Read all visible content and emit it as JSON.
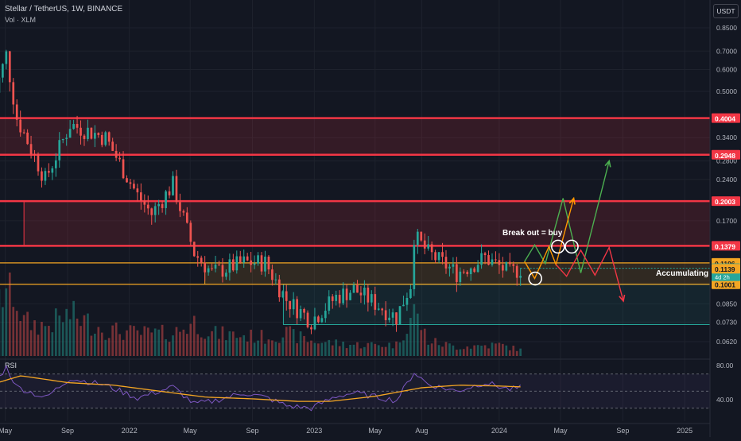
{
  "header": {
    "title": "Stellar / TetherUS, 1W, BINANCE",
    "volume_label": "Vol · XLM",
    "currency": "USDT"
  },
  "colors": {
    "up": "#26a69a",
    "down": "#ef5350",
    "resistance_line": "#f23645",
    "support_line": "#f5a623",
    "rsi_line": "#7e57c2",
    "rsi_ma": "#f5a623",
    "green_path": "#4caf50",
    "orange_path": "#ff9800",
    "red_path": "#f23645"
  },
  "chart_data": [
    {
      "type": "candlestick",
      "title": "Stellar / TetherUS, 1W, BINANCE",
      "y_scale": "log",
      "ylim": [
        0.055,
        1.0
      ],
      "x_range": [
        "2021-04-05",
        "2025-02-20"
      ],
      "y_tick_labels": [
        "0.8500",
        "0.7000",
        "0.6000",
        "0.5000",
        "0.3400",
        "0.2800",
        "0.2400",
        "0.1700",
        "0.0850",
        "0.0730",
        "0.0620"
      ],
      "x_tick_labels": [
        "May",
        "Sep",
        "2022",
        "May",
        "Sep",
        "2023",
        "May",
        "Aug",
        "2024",
        "May",
        "Sep",
        "2025"
      ],
      "ohlc_anchors": [
        {
          "date": "2021-04-05",
          "close": 0.45
        },
        {
          "date": "2021-05-03",
          "close": 0.68
        },
        {
          "date": "2021-05-24",
          "close": 0.4
        },
        {
          "date": "2021-07-19",
          "close": 0.24
        },
        {
          "date": "2021-09-06",
          "close": 0.38
        },
        {
          "date": "2021-10-11",
          "close": 0.36
        },
        {
          "date": "2021-11-15",
          "close": 0.34
        },
        {
          "date": "2022-01-17",
          "close": 0.21
        },
        {
          "date": "2022-02-14",
          "close": 0.18
        },
        {
          "date": "2022-03-28",
          "close": 0.23
        },
        {
          "date": "2022-05-09",
          "close": 0.13
        },
        {
          "date": "2022-06-13",
          "close": 0.11
        },
        {
          "date": "2022-08-15",
          "close": 0.12
        },
        {
          "date": "2022-09-26",
          "close": 0.12
        },
        {
          "date": "2022-11-07",
          "close": 0.088
        },
        {
          "date": "2022-12-26",
          "close": 0.074
        },
        {
          "date": "2023-02-13",
          "close": 0.09
        },
        {
          "date": "2023-03-20",
          "close": 0.096
        },
        {
          "date": "2023-06-12",
          "close": 0.076
        },
        {
          "date": "2023-07-10",
          "close": 0.1
        },
        {
          "date": "2023-07-17",
          "close": 0.15
        },
        {
          "date": "2023-08-14",
          "close": 0.13
        },
        {
          "date": "2023-10-09",
          "close": 0.11
        },
        {
          "date": "2023-12-04",
          "close": 0.125
        },
        {
          "date": "2024-01-22",
          "close": 0.11
        },
        {
          "date": "2024-02-12",
          "close": 0.1144
        }
      ],
      "horizontal_levels": [
        {
          "label": "0.4004",
          "value": 0.4004,
          "kind": "resistance"
        },
        {
          "label": "0.2948",
          "value": 0.2948,
          "kind": "resistance"
        },
        {
          "label": "0.2003",
          "value": 0.2003,
          "kind": "resistance"
        },
        {
          "label": "0.1379",
          "value": 0.1379,
          "kind": "resistance"
        },
        {
          "label": "0.1196",
          "value": 0.1196,
          "kind": "support"
        },
        {
          "label": "0.1001",
          "value": 0.1001,
          "kind": "support"
        }
      ],
      "price_tags": [
        {
          "label": "0.1144",
          "value": 0.1144,
          "note": "4d 2h",
          "kind": "last"
        },
        {
          "label": "0.1139",
          "value": 0.1139,
          "kind": "ma"
        }
      ],
      "zones": [
        {
          "kind": "red",
          "from_date": "2021-04-05",
          "to_date": "2025-02-20",
          "low": 0.2948,
          "high": 0.4004
        },
        {
          "kind": "red",
          "from_date": "2021-06-07",
          "to_date": "2025-02-20",
          "low": 0.1379,
          "high": 0.2003
        },
        {
          "kind": "yellow",
          "from_date": "2022-05-30",
          "to_date": "2025-02-20",
          "low": 0.1001,
          "high": 0.1196
        },
        {
          "kind": "green",
          "from_date": "2022-11-01",
          "to_date": "2025-02-20",
          "low": 0.0715,
          "high": 0.1001
        }
      ],
      "annotations": [
        "Break out = buy",
        "Accumulating"
      ],
      "scenario_paths": [
        {
          "kind": "green",
          "points": [
            [
              "2024-02-20",
              0.121
            ],
            [
              "2024-03-11",
              0.139
            ],
            [
              "2024-04-01",
              0.119
            ],
            [
              "2024-05-06",
              0.205
            ],
            [
              "2024-06-10",
              0.11
            ],
            [
              "2024-08-05",
              0.28
            ]
          ]
        },
        {
          "kind": "orange",
          "points": [
            [
              "2024-02-20",
              0.121
            ],
            [
              "2024-03-11",
              0.105
            ],
            [
              "2024-04-08",
              0.137
            ],
            [
              "2024-04-22",
              0.118
            ],
            [
              "2024-05-27",
              0.205
            ]
          ]
        },
        {
          "kind": "red",
          "points": [
            [
              "2024-04-22",
              0.118
            ],
            [
              "2024-05-13",
              0.107
            ],
            [
              "2024-06-10",
              0.133
            ],
            [
              "2024-07-08",
              0.108
            ],
            [
              "2024-08-05",
              0.136
            ],
            [
              "2024-09-02",
              0.087
            ]
          ]
        }
      ],
      "circles": [
        {
          "date": "2024-03-12",
          "value": 0.105
        },
        {
          "date": "2024-04-26",
          "value": 0.137
        },
        {
          "date": "2024-05-23",
          "value": 0.137
        }
      ]
    },
    {
      "type": "bar",
      "title": "Vol · XLM",
      "note": "volume bars with relative heights",
      "anchors": [
        [
          "2021-04-05",
          0.55
        ],
        [
          "2021-05-10",
          1.0
        ],
        [
          "2021-06-07",
          0.45
        ],
        [
          "2021-07-19",
          0.4
        ],
        [
          "2021-09-06",
          0.55
        ],
        [
          "2021-11-15",
          0.35
        ],
        [
          "2022-01-17",
          0.3
        ],
        [
          "2022-03-28",
          0.3
        ],
        [
          "2022-05-09",
          0.45
        ],
        [
          "2022-06-13",
          0.3
        ],
        [
          "2022-09-26",
          0.25
        ],
        [
          "2022-11-07",
          0.3
        ],
        [
          "2022-12-26",
          0.2
        ],
        [
          "2023-03-20",
          0.15
        ],
        [
          "2023-06-12",
          0.15
        ],
        [
          "2023-07-17",
          0.6
        ],
        [
          "2023-08-14",
          0.2
        ],
        [
          "2023-10-09",
          0.12
        ],
        [
          "2024-01-01",
          0.15
        ],
        [
          "2024-02-12",
          0.08
        ]
      ]
    },
    {
      "type": "line",
      "title": "RSI",
      "ylim": [
        30,
        85
      ],
      "y_tick_labels": [
        "80.00",
        "40.00"
      ],
      "bands": [
        70,
        50,
        30
      ],
      "series": [
        {
          "kind": "rsi",
          "anchors": [
            [
              "2021-04-05",
              55
            ],
            [
              "2021-05-03",
              78
            ],
            [
              "2021-05-24",
              55
            ],
            [
              "2021-07-19",
              42
            ],
            [
              "2021-09-06",
              65
            ],
            [
              "2021-11-15",
              57
            ],
            [
              "2022-01-17",
              42
            ],
            [
              "2022-03-28",
              55
            ],
            [
              "2022-05-09",
              35
            ],
            [
              "2022-06-13",
              38
            ],
            [
              "2022-08-15",
              48
            ],
            [
              "2022-10-01",
              42
            ],
            [
              "2022-11-07",
              33
            ],
            [
              "2022-12-26",
              30
            ],
            [
              "2023-02-13",
              44
            ],
            [
              "2023-03-20",
              48
            ],
            [
              "2023-06-12",
              39
            ],
            [
              "2023-07-17",
              72
            ],
            [
              "2023-08-14",
              58
            ],
            [
              "2023-10-09",
              50
            ],
            [
              "2023-12-04",
              60
            ],
            [
              "2024-01-22",
              52
            ],
            [
              "2024-02-12",
              54
            ]
          ]
        },
        {
          "kind": "ma",
          "anchors": [
            [
              "2021-04-05",
              58
            ],
            [
              "2021-06-01",
              68
            ],
            [
              "2021-09-01",
              60
            ],
            [
              "2021-12-01",
              57
            ],
            [
              "2022-03-01",
              50
            ],
            [
              "2022-06-01",
              43
            ],
            [
              "2022-09-01",
              41
            ],
            [
              "2022-12-01",
              38
            ],
            [
              "2023-02-01",
              38
            ],
            [
              "2023-05-01",
              44
            ],
            [
              "2023-08-01",
              54
            ],
            [
              "2023-10-15",
              57
            ],
            [
              "2024-01-01",
              56
            ],
            [
              "2024-02-12",
              55
            ]
          ]
        }
      ]
    }
  ]
}
